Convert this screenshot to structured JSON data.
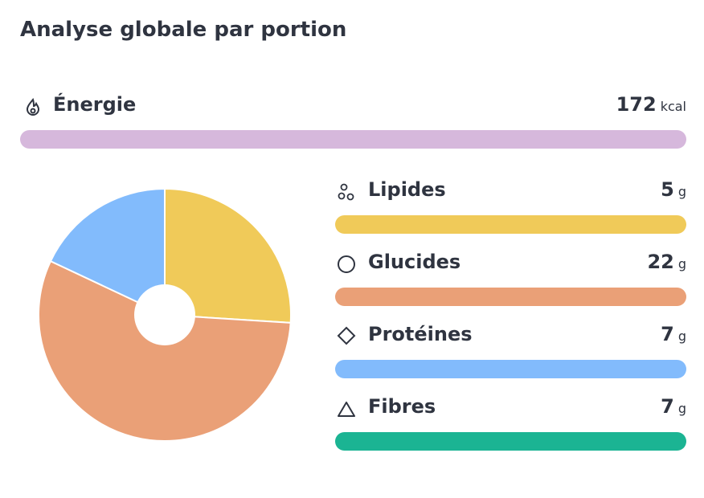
{
  "header": {
    "title": "Analyse globale par portion"
  },
  "energy": {
    "label": "Énergie",
    "value": 172,
    "unit": "kcal",
    "color": "#d6b8dc"
  },
  "nutrients": [
    {
      "label": "Lipides",
      "value": 5,
      "unit": "g",
      "color": "#f0ca59"
    },
    {
      "label": "Glucides",
      "value": 22,
      "unit": "g",
      "color": "#eaa077"
    },
    {
      "label": "Protéines",
      "value": 7,
      "unit": "g",
      "color": "#82bbfc"
    },
    {
      "label": "Fibres",
      "value": 7,
      "unit": "g",
      "color": "#1bb493"
    }
  ],
  "chart_data": {
    "type": "pie",
    "values": [
      26,
      56,
      18
    ],
    "colors": [
      "#f0ca59",
      "#eaa077",
      "#82bbfc"
    ]
  }
}
